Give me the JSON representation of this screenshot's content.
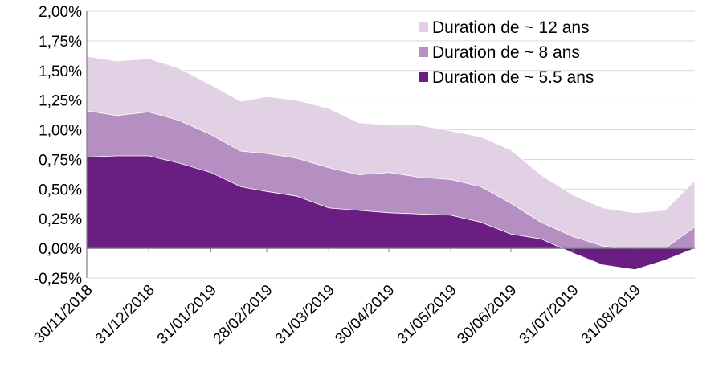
{
  "chart_data": {
    "type": "area",
    "title": "",
    "xlabel": "",
    "ylabel": "",
    "ylim": [
      -0.25,
      2.0
    ],
    "yticks": [
      "2,00%",
      "1,75%",
      "1,50%",
      "1,25%",
      "1,00%",
      "0,75%",
      "0,50%",
      "0,25%",
      "0,00%",
      "-0,25%"
    ],
    "xticks": [
      "30/11/2018",
      "31/12/2018",
      "31/01/2019",
      "28/02/2019",
      "31/03/2019",
      "30/04/2019",
      "31/05/2019",
      "30/06/2019",
      "31/07/2019",
      "31/08/2019"
    ],
    "x_range": [
      "30/11/2018",
      "30/09/2019"
    ],
    "grid": "horizontal",
    "legend_position": "top-right",
    "series": [
      {
        "name": "Duration de ~ 12 ans",
        "color": "#E2D1E4",
        "x": [
          "30/11/2018",
          "15/12/2018",
          "31/12/2018",
          "15/01/2019",
          "31/01/2019",
          "15/02/2019",
          "28/02/2019",
          "15/03/2019",
          "31/03/2019",
          "15/04/2019",
          "30/04/2019",
          "15/05/2019",
          "31/05/2019",
          "15/06/2019",
          "30/06/2019",
          "15/07/2019",
          "31/07/2019",
          "15/08/2019",
          "31/08/2019",
          "15/09/2019",
          "30/09/2019"
        ],
        "values": [
          1.62,
          1.58,
          1.6,
          1.52,
          1.38,
          1.24,
          1.28,
          1.25,
          1.18,
          1.06,
          1.04,
          1.04,
          0.99,
          0.94,
          0.83,
          0.62,
          0.45,
          0.34,
          0.3,
          0.32,
          0.57
        ]
      },
      {
        "name": "Duration de ~ 8 ans",
        "color": "#B58FC1",
        "x": [
          "30/11/2018",
          "15/12/2018",
          "31/12/2018",
          "15/01/2019",
          "31/01/2019",
          "15/02/2019",
          "28/02/2019",
          "15/03/2019",
          "31/03/2019",
          "15/04/2019",
          "30/04/2019",
          "15/05/2019",
          "31/05/2019",
          "15/06/2019",
          "30/06/2019",
          "15/07/2019",
          "31/07/2019",
          "15/08/2019",
          "31/08/2019",
          "15/09/2019",
          "30/09/2019"
        ],
        "values": [
          1.16,
          1.12,
          1.15,
          1.08,
          0.96,
          0.82,
          0.8,
          0.76,
          0.68,
          0.62,
          0.64,
          0.6,
          0.58,
          0.52,
          0.38,
          0.22,
          0.1,
          0.02,
          -0.02,
          0.0,
          0.18
        ]
      },
      {
        "name": "Duration de ~ 5.5 ans",
        "color": "#6B1E82",
        "x": [
          "30/11/2018",
          "15/12/2018",
          "31/12/2018",
          "15/01/2019",
          "31/01/2019",
          "15/02/2019",
          "28/02/2019",
          "15/03/2019",
          "31/03/2019",
          "15/04/2019",
          "30/04/2019",
          "15/05/2019",
          "31/05/2019",
          "15/06/2019",
          "30/06/2019",
          "15/07/2019",
          "31/07/2019",
          "15/08/2019",
          "31/08/2019",
          "15/09/2019",
          "30/09/2019"
        ],
        "values": [
          0.77,
          0.78,
          0.78,
          0.72,
          0.64,
          0.52,
          0.48,
          0.44,
          0.34,
          0.32,
          0.3,
          0.29,
          0.28,
          0.22,
          0.12,
          0.08,
          -0.04,
          -0.14,
          -0.18,
          -0.1,
          0.0
        ]
      }
    ]
  }
}
